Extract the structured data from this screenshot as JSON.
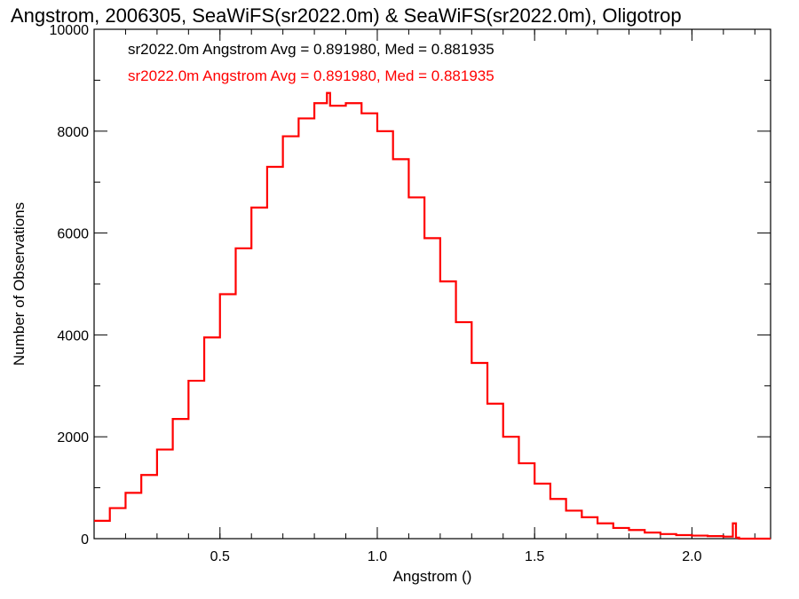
{
  "chart_data": {
    "type": "line",
    "title": "Angstrom, 2006305, SeaWiFS(sr2022.0m) & SeaWiFS(sr2022.0m), Oligotrop",
    "xlabel": "Angstrom ()",
    "ylabel": "Number of Observations",
    "xlim": [
      0.1,
      2.25
    ],
    "ylim": [
      0,
      10000
    ],
    "x_ticks": [
      {
        "value": 0.5,
        "label": "0.5"
      },
      {
        "value": 1.0,
        "label": "1.0"
      },
      {
        "value": 1.5,
        "label": "1.5"
      },
      {
        "value": 2.0,
        "label": "2.0"
      }
    ],
    "y_ticks": [
      {
        "value": 0,
        "label": "0"
      },
      {
        "value": 2000,
        "label": "2000"
      },
      {
        "value": 4000,
        "label": "4000"
      },
      {
        "value": 6000,
        "label": "6000"
      },
      {
        "value": 8000,
        "label": "8000"
      },
      {
        "value": 10000,
        "label": "10000"
      }
    ],
    "legend": [
      {
        "text": "sr2022.0m Angstrom Avg = 0.891980, Med = 0.881935",
        "color": "#000000"
      },
      {
        "text": "sr2022.0m Angstrom Avg = 0.891980, Med = 0.881935",
        "color": "#ff0000"
      }
    ],
    "series": [
      {
        "color": "#ff0000",
        "style": "step",
        "x": [
          0.1,
          0.15,
          0.2,
          0.25,
          0.3,
          0.35,
          0.4,
          0.45,
          0.5,
          0.55,
          0.6,
          0.65,
          0.7,
          0.75,
          0.8,
          0.84,
          0.85,
          0.9,
          0.95,
          1.0,
          1.05,
          1.1,
          1.15,
          1.2,
          1.25,
          1.3,
          1.35,
          1.4,
          1.45,
          1.5,
          1.55,
          1.6,
          1.65,
          1.7,
          1.75,
          1.8,
          1.85,
          1.9,
          1.95,
          2.0,
          2.05,
          2.1,
          2.13,
          2.14,
          2.15,
          2.25
        ],
        "y": [
          350,
          600,
          900,
          1250,
          1750,
          2350,
          3100,
          3950,
          4800,
          5700,
          6500,
          7300,
          7900,
          8250,
          8550,
          8750,
          8500,
          8550,
          8350,
          8000,
          7450,
          6700,
          5900,
          5050,
          4250,
          3450,
          2650,
          2000,
          1480,
          1080,
          780,
          550,
          420,
          300,
          210,
          170,
          120,
          90,
          70,
          60,
          50,
          40,
          300,
          20,
          0,
          0
        ]
      }
    ],
    "grid": false
  }
}
